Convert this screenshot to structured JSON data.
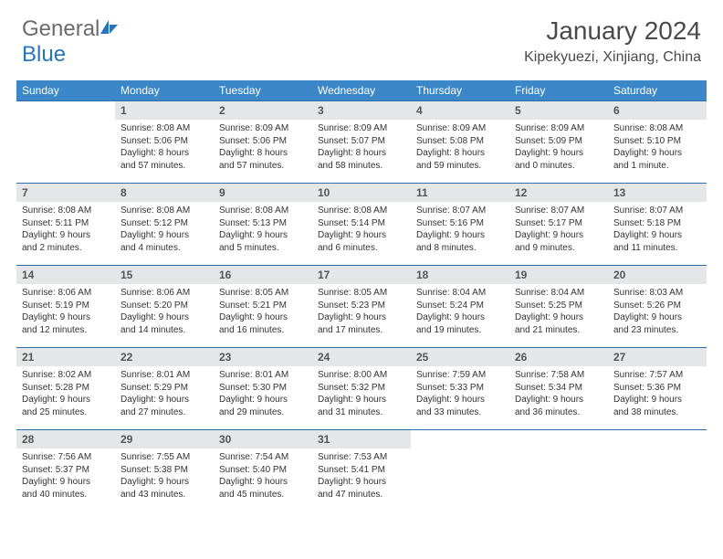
{
  "logo": {
    "word1": "General",
    "word2": "Blue"
  },
  "title": "January 2024",
  "location": "Kipekyuezi, Xinjiang, China",
  "colors": {
    "header_bg": "#3b87c8",
    "header_text": "#ffffff",
    "daynum_bg": "#e4e6e8",
    "row_border": "#2f6fa8",
    "body_text": "#333333",
    "logo_gray": "#6b6b6b",
    "logo_blue": "#2a74bd",
    "page_bg": "#ffffff"
  },
  "weekdays": [
    "Sunday",
    "Monday",
    "Tuesday",
    "Wednesday",
    "Thursday",
    "Friday",
    "Saturday"
  ],
  "weeks": [
    [
      null,
      {
        "n": "1",
        "sr": "Sunrise: 8:08 AM",
        "ss": "Sunset: 5:06 PM",
        "d1": "Daylight: 8 hours",
        "d2": "and 57 minutes."
      },
      {
        "n": "2",
        "sr": "Sunrise: 8:09 AM",
        "ss": "Sunset: 5:06 PM",
        "d1": "Daylight: 8 hours",
        "d2": "and 57 minutes."
      },
      {
        "n": "3",
        "sr": "Sunrise: 8:09 AM",
        "ss": "Sunset: 5:07 PM",
        "d1": "Daylight: 8 hours",
        "d2": "and 58 minutes."
      },
      {
        "n": "4",
        "sr": "Sunrise: 8:09 AM",
        "ss": "Sunset: 5:08 PM",
        "d1": "Daylight: 8 hours",
        "d2": "and 59 minutes."
      },
      {
        "n": "5",
        "sr": "Sunrise: 8:09 AM",
        "ss": "Sunset: 5:09 PM",
        "d1": "Daylight: 9 hours",
        "d2": "and 0 minutes."
      },
      {
        "n": "6",
        "sr": "Sunrise: 8:08 AM",
        "ss": "Sunset: 5:10 PM",
        "d1": "Daylight: 9 hours",
        "d2": "and 1 minute."
      }
    ],
    [
      {
        "n": "7",
        "sr": "Sunrise: 8:08 AM",
        "ss": "Sunset: 5:11 PM",
        "d1": "Daylight: 9 hours",
        "d2": "and 2 minutes."
      },
      {
        "n": "8",
        "sr": "Sunrise: 8:08 AM",
        "ss": "Sunset: 5:12 PM",
        "d1": "Daylight: 9 hours",
        "d2": "and 4 minutes."
      },
      {
        "n": "9",
        "sr": "Sunrise: 8:08 AM",
        "ss": "Sunset: 5:13 PM",
        "d1": "Daylight: 9 hours",
        "d2": "and 5 minutes."
      },
      {
        "n": "10",
        "sr": "Sunrise: 8:08 AM",
        "ss": "Sunset: 5:14 PM",
        "d1": "Daylight: 9 hours",
        "d2": "and 6 minutes."
      },
      {
        "n": "11",
        "sr": "Sunrise: 8:07 AM",
        "ss": "Sunset: 5:16 PM",
        "d1": "Daylight: 9 hours",
        "d2": "and 8 minutes."
      },
      {
        "n": "12",
        "sr": "Sunrise: 8:07 AM",
        "ss": "Sunset: 5:17 PM",
        "d1": "Daylight: 9 hours",
        "d2": "and 9 minutes."
      },
      {
        "n": "13",
        "sr": "Sunrise: 8:07 AM",
        "ss": "Sunset: 5:18 PM",
        "d1": "Daylight: 9 hours",
        "d2": "and 11 minutes."
      }
    ],
    [
      {
        "n": "14",
        "sr": "Sunrise: 8:06 AM",
        "ss": "Sunset: 5:19 PM",
        "d1": "Daylight: 9 hours",
        "d2": "and 12 minutes."
      },
      {
        "n": "15",
        "sr": "Sunrise: 8:06 AM",
        "ss": "Sunset: 5:20 PM",
        "d1": "Daylight: 9 hours",
        "d2": "and 14 minutes."
      },
      {
        "n": "16",
        "sr": "Sunrise: 8:05 AM",
        "ss": "Sunset: 5:21 PM",
        "d1": "Daylight: 9 hours",
        "d2": "and 16 minutes."
      },
      {
        "n": "17",
        "sr": "Sunrise: 8:05 AM",
        "ss": "Sunset: 5:23 PM",
        "d1": "Daylight: 9 hours",
        "d2": "and 17 minutes."
      },
      {
        "n": "18",
        "sr": "Sunrise: 8:04 AM",
        "ss": "Sunset: 5:24 PM",
        "d1": "Daylight: 9 hours",
        "d2": "and 19 minutes."
      },
      {
        "n": "19",
        "sr": "Sunrise: 8:04 AM",
        "ss": "Sunset: 5:25 PM",
        "d1": "Daylight: 9 hours",
        "d2": "and 21 minutes."
      },
      {
        "n": "20",
        "sr": "Sunrise: 8:03 AM",
        "ss": "Sunset: 5:26 PM",
        "d1": "Daylight: 9 hours",
        "d2": "and 23 minutes."
      }
    ],
    [
      {
        "n": "21",
        "sr": "Sunrise: 8:02 AM",
        "ss": "Sunset: 5:28 PM",
        "d1": "Daylight: 9 hours",
        "d2": "and 25 minutes."
      },
      {
        "n": "22",
        "sr": "Sunrise: 8:01 AM",
        "ss": "Sunset: 5:29 PM",
        "d1": "Daylight: 9 hours",
        "d2": "and 27 minutes."
      },
      {
        "n": "23",
        "sr": "Sunrise: 8:01 AM",
        "ss": "Sunset: 5:30 PM",
        "d1": "Daylight: 9 hours",
        "d2": "and 29 minutes."
      },
      {
        "n": "24",
        "sr": "Sunrise: 8:00 AM",
        "ss": "Sunset: 5:32 PM",
        "d1": "Daylight: 9 hours",
        "d2": "and 31 minutes."
      },
      {
        "n": "25",
        "sr": "Sunrise: 7:59 AM",
        "ss": "Sunset: 5:33 PM",
        "d1": "Daylight: 9 hours",
        "d2": "and 33 minutes."
      },
      {
        "n": "26",
        "sr": "Sunrise: 7:58 AM",
        "ss": "Sunset: 5:34 PM",
        "d1": "Daylight: 9 hours",
        "d2": "and 36 minutes."
      },
      {
        "n": "27",
        "sr": "Sunrise: 7:57 AM",
        "ss": "Sunset: 5:36 PM",
        "d1": "Daylight: 9 hours",
        "d2": "and 38 minutes."
      }
    ],
    [
      {
        "n": "28",
        "sr": "Sunrise: 7:56 AM",
        "ss": "Sunset: 5:37 PM",
        "d1": "Daylight: 9 hours",
        "d2": "and 40 minutes."
      },
      {
        "n": "29",
        "sr": "Sunrise: 7:55 AM",
        "ss": "Sunset: 5:38 PM",
        "d1": "Daylight: 9 hours",
        "d2": "and 43 minutes."
      },
      {
        "n": "30",
        "sr": "Sunrise: 7:54 AM",
        "ss": "Sunset: 5:40 PM",
        "d1": "Daylight: 9 hours",
        "d2": "and 45 minutes."
      },
      {
        "n": "31",
        "sr": "Sunrise: 7:53 AM",
        "ss": "Sunset: 5:41 PM",
        "d1": "Daylight: 9 hours",
        "d2": "and 47 minutes."
      },
      null,
      null,
      null
    ]
  ]
}
